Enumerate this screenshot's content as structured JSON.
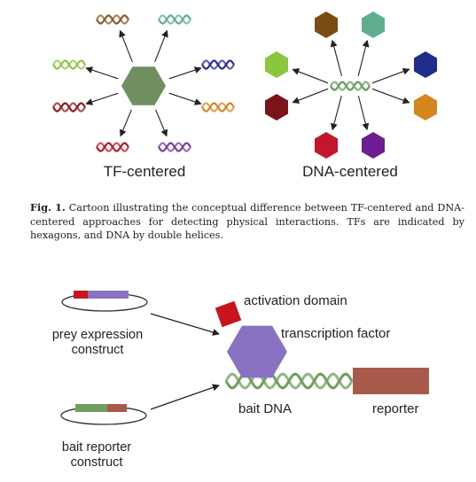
{
  "figure1": {
    "left_label": "TF-centered",
    "right_label": "DNA-centered",
    "caption_label": "Fig. 1.",
    "caption_text": " Cartoon illustrating the conceptual difference between TF-centered and DNA-centered approaches for detecting physical interactions. TFs are indicated by hexagons, and DNA by double helices.",
    "hexagon_colors": [
      "#7b4b14",
      "#5fae8e",
      "#1f2e8a",
      "#d4861d",
      "#6a1e8f",
      "#c4162a",
      "#7a1418",
      "#8cc63f"
    ],
    "center_hexagon_color": "#6f8f5f",
    "helix_colors": [
      "#8b5a2b",
      "#5fae8e",
      "#2a2a9a",
      "#d4861d",
      "#7a3ea0",
      "#b31b2a",
      "#8a1a1a",
      "#8cc63f"
    ]
  },
  "figure2": {
    "prey_label_line1": "prey expression",
    "prey_label_line2": "construct",
    "bait_label_line1": "bait reporter",
    "bait_label_line2": "construct",
    "activation_domain": "activation domain",
    "transcription_factor": "transcription factor",
    "bait_dna": "bait DNA",
    "reporter": "reporter",
    "colors": {
      "activation_domain": "#c8141e",
      "transcription_factor": "#8a72c2",
      "bait_dna": "#6f9f5f",
      "reporter": "#a85a4a"
    }
  }
}
